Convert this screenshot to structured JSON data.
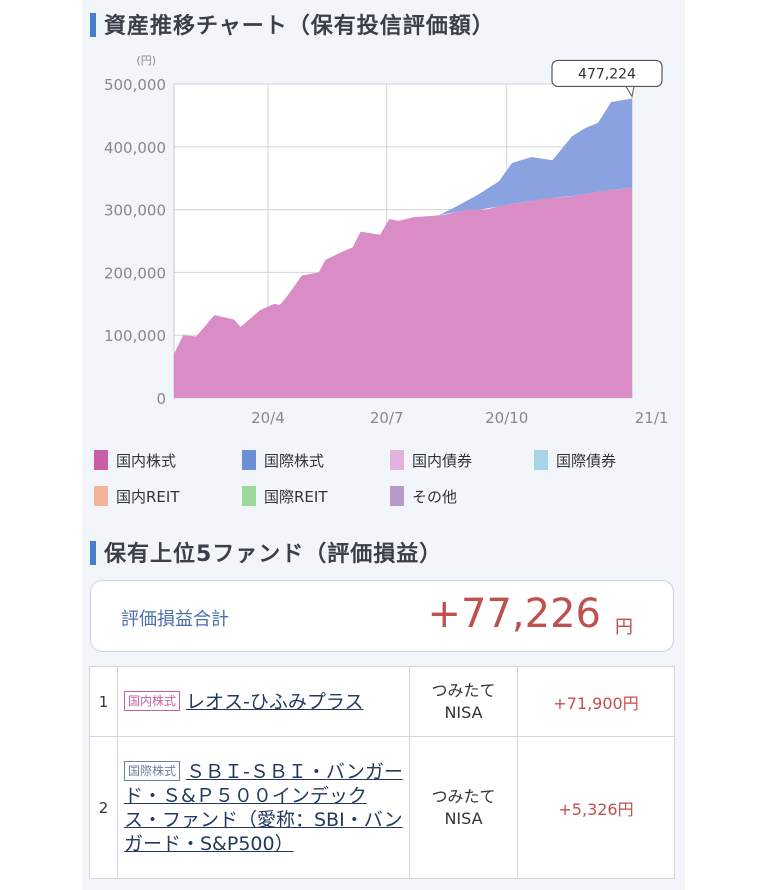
{
  "chart_section": {
    "title": "資産推移チャート（保有投信評価額）"
  },
  "chart_data": {
    "type": "area",
    "title": "資産推移チャート（保有投信評価額）",
    "y_unit": "(円)",
    "ylim": [
      0,
      500000
    ],
    "y_ticks": [
      "500,000",
      "400,000",
      "300,000",
      "200,000",
      "100,000",
      "0"
    ],
    "x_tick_labels": [
      "20/4",
      "20/7",
      "20/10",
      "21/1"
    ],
    "x_tick_dates": [
      "2020-04",
      "2020-07",
      "2020-10",
      "2021-01"
    ],
    "x_range": [
      "2020-01-20",
      "2021-01-05"
    ],
    "grid": true,
    "callout_label": "477,224",
    "colors": {
      "domestic_stock": "#d98cc5",
      "intl_stock": "#8aa2e0"
    },
    "series": [
      {
        "name": "国内株式",
        "x": [
          "2020-01-20",
          "2020-01-27",
          "2020-02-06",
          "2020-02-20",
          "2020-03-06",
          "2020-03-11",
          "2020-03-26",
          "2020-04-06",
          "2020-04-10",
          "2020-04-15",
          "2020-04-27",
          "2020-05-10",
          "2020-05-15",
          "2020-05-27",
          "2020-06-05",
          "2020-06-11",
          "2020-06-26",
          "2020-07-03",
          "2020-07-10",
          "2020-07-22",
          "2020-08-05",
          "2020-08-15",
          "2020-09-01",
          "2020-09-15",
          "2020-10-01",
          "2020-10-15",
          "2020-11-01",
          "2020-11-15",
          "2020-12-01",
          "2020-12-15",
          "2021-01-05"
        ],
        "values": [
          70000,
          100000,
          98000,
          132000,
          125000,
          113000,
          140000,
          150000,
          148000,
          160000,
          195000,
          200000,
          220000,
          232000,
          240000,
          265000,
          260000,
          285000,
          282000,
          288000,
          290000,
          292000,
          300000,
          300000,
          308000,
          312000,
          318000,
          320000,
          325000,
          330000,
          335000
        ]
      },
      {
        "name": "国際株式",
        "x": [
          "2020-08-10",
          "2020-08-25",
          "2020-09-10",
          "2020-09-25",
          "2020-10-05",
          "2020-10-20",
          "2020-11-05",
          "2020-11-20",
          "2020-11-30",
          "2020-12-10",
          "2020-12-20",
          "2021-01-05"
        ],
        "values": [
          0,
          10000,
          25000,
          40000,
          65000,
          70000,
          60000,
          95000,
          105000,
          110000,
          140000,
          142000
        ]
      }
    ]
  },
  "legend": [
    {
      "label": "国内株式",
      "color": "#c85fa6"
    },
    {
      "label": "国際株式",
      "color": "#6d8fd6"
    },
    {
      "label": "国内債券",
      "color": "#e3b0e0"
    },
    {
      "label": "国際債券",
      "color": "#a8d4ea"
    },
    {
      "label": "国内REIT",
      "color": "#f2b59a"
    },
    {
      "label": "国際REIT",
      "color": "#9bd89b"
    },
    {
      "label": "その他",
      "color": "#b89ac8"
    }
  ],
  "funds_section": {
    "title": "保有上位5ファンド（評価損益）"
  },
  "summary": {
    "label": "評価損益合計",
    "value": "+77,226",
    "unit": "円"
  },
  "funds": [
    {
      "rank": "1",
      "category": "国内株式",
      "name": "レオス-ひふみプラス",
      "account_line1": "つみたて",
      "account_line2": "NISA",
      "gain": "+71,900円"
    },
    {
      "rank": "2",
      "category": "国際株式",
      "name": "ＳＢＩ-ＳＢＩ・バンガード・Ｓ&Ｐ５００インデックス・ファンド（愛称：SBI・バンガード・S&P500）",
      "account_line1": "つみたて",
      "account_line2": "NISA",
      "gain": "+5,326円"
    }
  ]
}
